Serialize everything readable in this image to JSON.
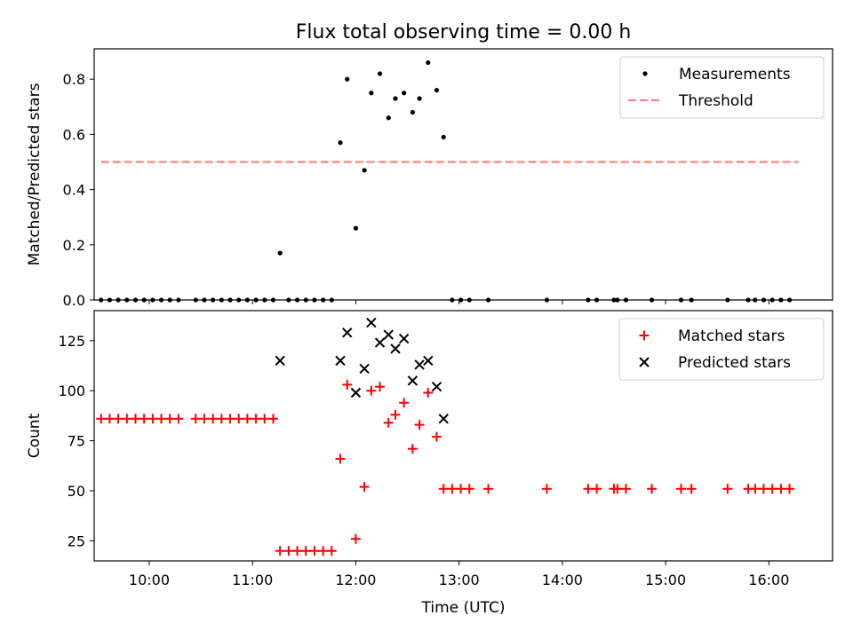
{
  "chart_data": {
    "title": "Flux total observing time = 0.00 h",
    "xlabel": "Time (UTC)",
    "xlim": [
      "09:28",
      "16:37"
    ],
    "xticks": [
      "10:00",
      "11:00",
      "12:00",
      "13:00",
      "14:00",
      "15:00",
      "16:00"
    ],
    "subplots": [
      {
        "type": "scatter",
        "ylabel": "Matched/Predicted stars",
        "ylim": [
          0,
          0.91
        ],
        "yticks": [
          "0.0",
          "0.2",
          "0.4",
          "0.6",
          "0.8"
        ],
        "legend": "top-right",
        "series": [
          {
            "name": "Measurements",
            "kind": "dot",
            "color": "#000000",
            "points": [
              [
                "09:32",
                0
              ],
              [
                "09:37",
                0
              ],
              [
                "09:42",
                0
              ],
              [
                "09:47",
                0
              ],
              [
                "09:52",
                0
              ],
              [
                "09:57",
                0
              ],
              [
                "10:02",
                0
              ],
              [
                "10:07",
                0
              ],
              [
                "10:12",
                0
              ],
              [
                "10:17",
                0
              ],
              [
                "10:27",
                0
              ],
              [
                "10:32",
                0
              ],
              [
                "10:37",
                0
              ],
              [
                "10:42",
                0
              ],
              [
                "10:47",
                0
              ],
              [
                "10:52",
                0
              ],
              [
                "10:57",
                0
              ],
              [
                "11:02",
                0
              ],
              [
                "11:07",
                0
              ],
              [
                "11:12",
                0
              ],
              [
                "11:16",
                0.17
              ],
              [
                "11:21",
                0
              ],
              [
                "11:26",
                0
              ],
              [
                "11:31",
                0
              ],
              [
                "11:36",
                0
              ],
              [
                "11:41",
                0
              ],
              [
                "11:46",
                0
              ],
              [
                "11:51",
                0.57
              ],
              [
                "11:55",
                0.8
              ],
              [
                "12:00",
                0.26
              ],
              [
                "12:05",
                0.47
              ],
              [
                "12:09",
                0.75
              ],
              [
                "12:14",
                0.82
              ],
              [
                "12:19",
                0.66
              ],
              [
                "12:23",
                0.73
              ],
              [
                "12:28",
                0.75
              ],
              [
                "12:33",
                0.68
              ],
              [
                "12:37",
                0.73
              ],
              [
                "12:42",
                0.86
              ],
              [
                "12:47",
                0.76
              ],
              [
                "12:51",
                0.59
              ],
              [
                "12:56",
                0
              ],
              [
                "13:01",
                0
              ],
              [
                "13:06",
                0
              ],
              [
                "13:17",
                0
              ],
              [
                "13:51",
                0
              ],
              [
                "14:15",
                0
              ],
              [
                "14:20",
                0
              ],
              [
                "14:30",
                0
              ],
              [
                "14:32",
                0
              ],
              [
                "14:37",
                0
              ],
              [
                "14:52",
                0
              ],
              [
                "15:09",
                0
              ],
              [
                "15:15",
                0
              ],
              [
                "15:36",
                0
              ],
              [
                "15:48",
                0
              ],
              [
                "15:52",
                0
              ],
              [
                "15:57",
                0
              ],
              [
                "16:02",
                0
              ],
              [
                "16:07",
                0
              ],
              [
                "16:12",
                0
              ]
            ]
          },
          {
            "name": "Threshold",
            "kind": "dashed-line",
            "color": "#ff7f7f",
            "points": [
              [
                "09:32",
                0.5
              ],
              [
                "16:17",
                0.5
              ]
            ]
          }
        ]
      },
      {
        "type": "scatter",
        "ylabel": "Count",
        "ylim": [
          15,
          140
        ],
        "yticks": [
          "25",
          "50",
          "75",
          "100",
          "125"
        ],
        "legend": "top-right",
        "series": [
          {
            "name": "Matched stars",
            "kind": "plus",
            "color": "#ff0000",
            "points": [
              [
                "09:32",
                86
              ],
              [
                "09:37",
                86
              ],
              [
                "09:42",
                86
              ],
              [
                "09:47",
                86
              ],
              [
                "09:52",
                86
              ],
              [
                "09:57",
                86
              ],
              [
                "10:02",
                86
              ],
              [
                "10:07",
                86
              ],
              [
                "10:12",
                86
              ],
              [
                "10:17",
                86
              ],
              [
                "10:27",
                86
              ],
              [
                "10:32",
                86
              ],
              [
                "10:37",
                86
              ],
              [
                "10:42",
                86
              ],
              [
                "10:47",
                86
              ],
              [
                "10:52",
                86
              ],
              [
                "10:57",
                86
              ],
              [
                "11:02",
                86
              ],
              [
                "11:07",
                86
              ],
              [
                "11:12",
                86
              ],
              [
                "11:16",
                20
              ],
              [
                "11:21",
                20
              ],
              [
                "11:26",
                20
              ],
              [
                "11:31",
                20
              ],
              [
                "11:36",
                20
              ],
              [
                "11:41",
                20
              ],
              [
                "11:46",
                20
              ],
              [
                "11:51",
                66
              ],
              [
                "11:55",
                103
              ],
              [
                "12:00",
                26
              ],
              [
                "12:05",
                52
              ],
              [
                "12:09",
                100
              ],
              [
                "12:14",
                102
              ],
              [
                "12:19",
                84
              ],
              [
                "12:23",
                88
              ],
              [
                "12:28",
                94
              ],
              [
                "12:33",
                71
              ],
              [
                "12:37",
                83
              ],
              [
                "12:42",
                99
              ],
              [
                "12:47",
                77
              ],
              [
                "12:51",
                51
              ],
              [
                "12:56",
                51
              ],
              [
                "13:01",
                51
              ],
              [
                "13:06",
                51
              ],
              [
                "13:17",
                51
              ],
              [
                "13:51",
                51
              ],
              [
                "14:15",
                51
              ],
              [
                "14:20",
                51
              ],
              [
                "14:30",
                51
              ],
              [
                "14:32",
                51
              ],
              [
                "14:37",
                51
              ],
              [
                "14:52",
                51
              ],
              [
                "15:09",
                51
              ],
              [
                "15:15",
                51
              ],
              [
                "15:36",
                51
              ],
              [
                "15:48",
                51
              ],
              [
                "15:52",
                51
              ],
              [
                "15:57",
                51
              ],
              [
                "16:02",
                51
              ],
              [
                "16:07",
                51
              ],
              [
                "16:12",
                51
              ]
            ]
          },
          {
            "name": "Predicted stars",
            "kind": "x",
            "color": "#000000",
            "points": [
              [
                "11:16",
                115
              ],
              [
                "11:51",
                115
              ],
              [
                "11:55",
                129
              ],
              [
                "12:00",
                99
              ],
              [
                "12:05",
                111
              ],
              [
                "12:09",
                134
              ],
              [
                "12:14",
                124
              ],
              [
                "12:19",
                128
              ],
              [
                "12:23",
                121
              ],
              [
                "12:28",
                126
              ],
              [
                "12:33",
                105
              ],
              [
                "12:37",
                113
              ],
              [
                "12:42",
                115
              ],
              [
                "12:47",
                102
              ],
              [
                "12:51",
                86
              ]
            ]
          }
        ]
      }
    ]
  }
}
